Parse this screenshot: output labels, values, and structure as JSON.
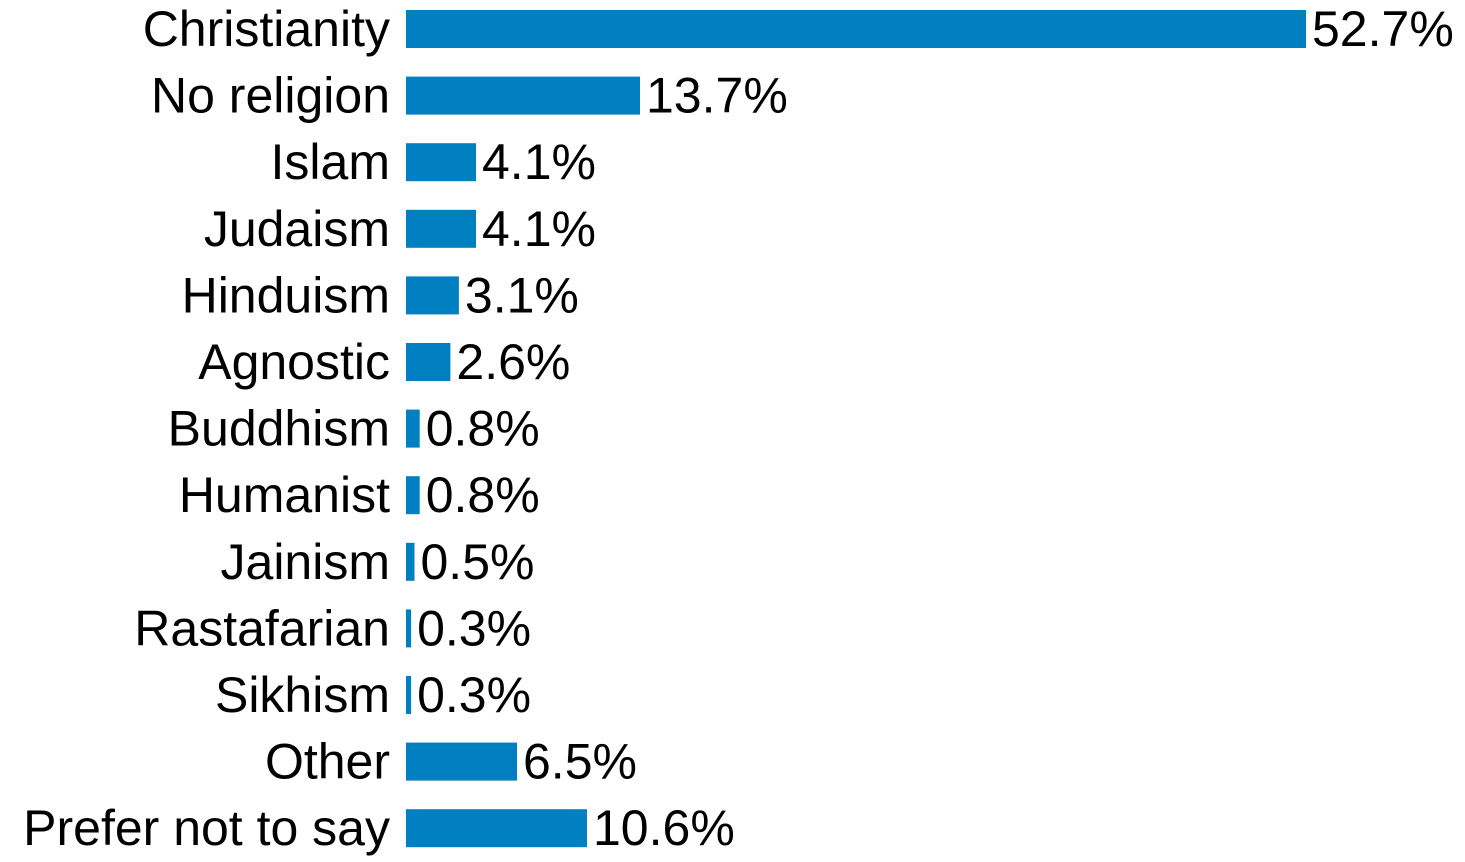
{
  "chart_data": {
    "type": "bar",
    "orientation": "horizontal",
    "title": "",
    "xlabel": "",
    "ylabel": "",
    "categories": [
      "Christianity",
      "No religion",
      "Islam",
      "Judaism",
      "Hinduism",
      "Agnostic",
      "Buddhism",
      "Humanist",
      "Jainism",
      "Rastafarian",
      "Sikhism",
      "Other",
      "Prefer not to say"
    ],
    "values": [
      52.7,
      13.7,
      4.1,
      4.1,
      3.1,
      2.6,
      0.8,
      0.8,
      0.5,
      0.3,
      0.3,
      6.5,
      10.6
    ],
    "value_labels": [
      "52.7%",
      "13.7%",
      "4.1%",
      "4.1%",
      "3.1%",
      "2.6%",
      "0.8%",
      "0.8%",
      "0.5%",
      "0.3%",
      "0.3%",
      "6.5%",
      "10.6%"
    ],
    "xlim": [
      0,
      52.7
    ],
    "grid": false,
    "legend": "none",
    "colors": {
      "bar": "#0080c0",
      "text": "#000000",
      "background": "#ffffff"
    }
  }
}
